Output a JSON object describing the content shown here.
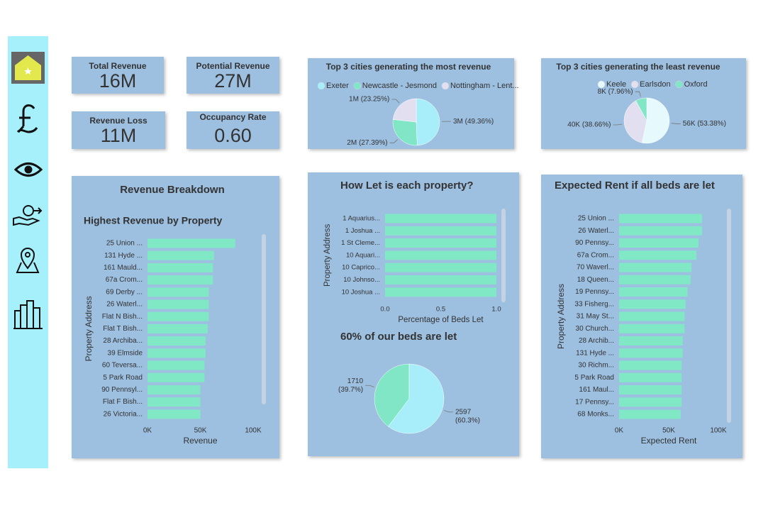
{
  "kpis": [
    {
      "label": "Total Revenue",
      "value": "16M",
      "color": "#3a8a50"
    },
    {
      "label": "Potential Revenue",
      "value": "27M",
      "color": "#1f2a33"
    },
    {
      "label": "Revenue Loss",
      "value": "11M",
      "color": "#c4262b"
    },
    {
      "label": "Occupancy Rate",
      "value": "0.60",
      "color": "#1f2a33"
    }
  ],
  "chart_data": [
    {
      "type": "pie",
      "title": "Top 3 cities generating the most revenue",
      "legend": "top",
      "categories": [
        "Exeter",
        "Newcastle - Jesmond",
        "Nottingham - Lent..."
      ],
      "values": [
        49.36,
        27.39,
        23.25
      ],
      "value_labels": [
        "3M (49.36%)",
        "2M (27.39%)",
        "1M (23.25%)"
      ],
      "colors": [
        "#a8eefa",
        "#80e6c6",
        "#e2dff0"
      ]
    },
    {
      "type": "pie",
      "title": "Top 3 cities generating the least revenue",
      "legend": "top",
      "categories": [
        "Keele",
        "Earlsdon",
        "Oxford"
      ],
      "values": [
        53.38,
        38.66,
        7.96
      ],
      "value_labels": [
        "56K (53.38%)",
        "40K (38.66%)",
        "8K (7.96%)"
      ],
      "colors": [
        "#e6fafd",
        "#e2dff0",
        "#80e6c6"
      ]
    },
    {
      "type": "bar",
      "orientation": "horizontal",
      "card_title": "Revenue Breakdown",
      "title": "Highest Revenue by Property",
      "x_label": "Revenue",
      "y_label": "Property Address",
      "color": "#80e8c4",
      "categories": [
        "25 Union ...",
        "131 Hyde ...",
        "161 Mauld...",
        "67a Crom...",
        "69 Derby ...",
        "26 Waterl...",
        "Flat N Bish...",
        "Flat T Bish...",
        "28 Archiba...",
        "39 Elmside",
        "60 Teversa...",
        "5 Park Road",
        "90 Pennsyl...",
        "Flat F Bish...",
        "26 Victoria..."
      ],
      "values": [
        83000,
        63000,
        62000,
        62000,
        58000,
        58000,
        58000,
        57000,
        55000,
        55000,
        54000,
        54000,
        50000,
        50000,
        50000
      ],
      "xlim": [
        0,
        100000
      ],
      "xticks": [
        {
          "value": 0,
          "label": "0K"
        },
        {
          "value": 50000,
          "label": "50K"
        },
        {
          "value": 100000,
          "label": "100K"
        }
      ]
    },
    {
      "type": "bar",
      "orientation": "horizontal",
      "title": "How Let is each property?",
      "x_label": "Percentage of Beds Let",
      "y_label": "Property Address",
      "color": "#80e8c4",
      "categories": [
        "1 Aquarius...",
        "1 Joshua ...",
        "1 St Cleme...",
        "10 Aquari...",
        "10 Caprico...",
        "10 Johnso...",
        "10 Joshua ..."
      ],
      "values": [
        1,
        1,
        1,
        1,
        1,
        1,
        1
      ],
      "xlim": [
        0,
        1
      ],
      "xticks": [
        {
          "value": 0,
          "label": "0.0"
        },
        0.5,
        {
          "value": 1,
          "label": "1.0"
        }
      ]
    },
    {
      "type": "pie",
      "title": "60% of our beds are let",
      "values": [
        1710,
        2597
      ],
      "value_labels": [
        [
          "1710",
          "(39.7%)"
        ],
        [
          "2597",
          "(60.3%)"
        ]
      ],
      "colors": [
        "#80e6c6",
        "#a8eefa"
      ]
    },
    {
      "type": "bar",
      "orientation": "horizontal",
      "title": "Expected Rent if all beds are let",
      "x_label": "Expected Rent",
      "y_label": "Property Address",
      "color": "#80e8c4",
      "categories": [
        "25 Union ...",
        "26 Waterl...",
        "90 Pennsy...",
        "67a Crom...",
        "70 Waverl...",
        "18 Queen...",
        "19 Pennsy...",
        "33 Fisherg...",
        "31 May St...",
        "30 Church...",
        "28 Archib...",
        "131 Hyde ...",
        "30 Richm...",
        "5 Park Road",
        "161 Maul...",
        "17 Pennsy...",
        "68 Monks..."
      ],
      "values": [
        83500,
        83500,
        80000,
        78000,
        73000,
        72000,
        69000,
        67000,
        66000,
        66000,
        64000,
        64000,
        63000,
        63000,
        63000,
        63000,
        62000
      ],
      "xlim": [
        0,
        100000
      ],
      "xticks": [
        {
          "value": 0,
          "label": "0K"
        },
        {
          "value": 50000,
          "label": "50K"
        },
        {
          "value": 100000,
          "label": "100K"
        }
      ]
    }
  ]
}
